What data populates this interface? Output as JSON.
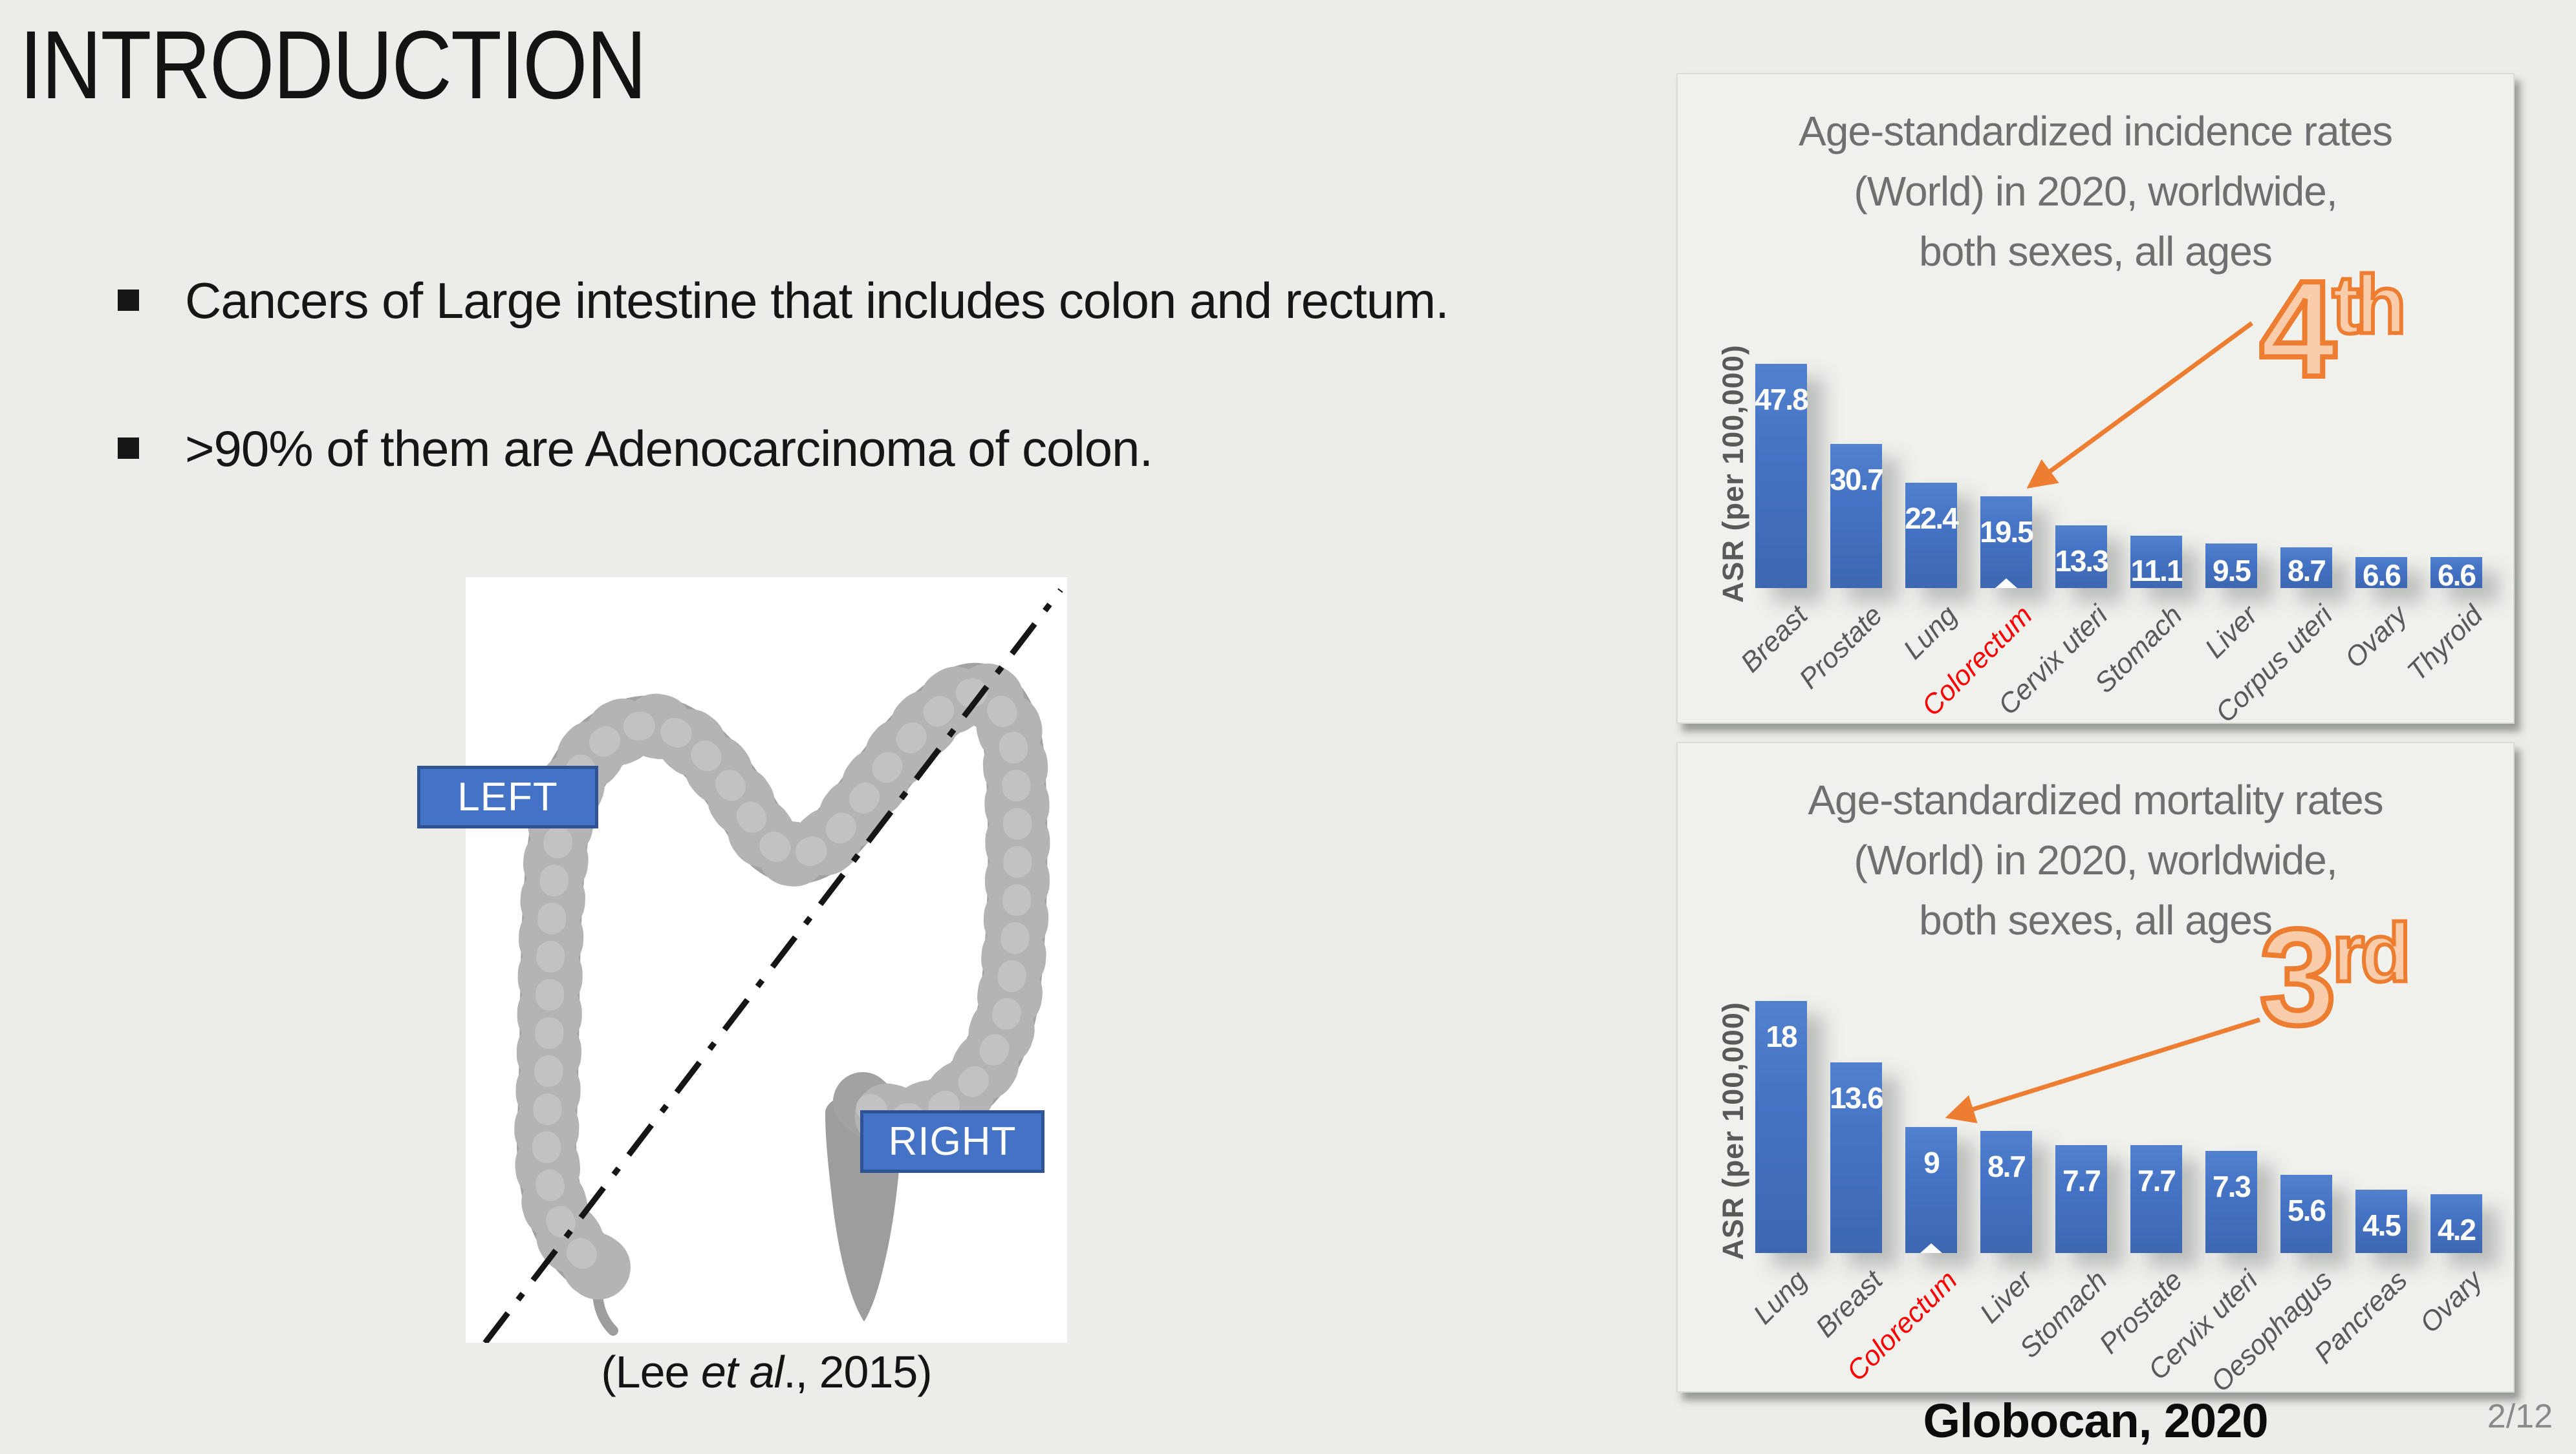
{
  "slide": {
    "title": "INTRODUCTION",
    "bullets": [
      "Cancers of Large intestine that includes colon and rectum.",
      ">90% of them are Adenocarcinoma of colon."
    ],
    "figure": {
      "left_label": "LEFT",
      "right_label": "RIGHT",
      "caption": {
        "prefix": "(Lee ",
        "italic": "et al",
        "suffix": "., 2015)"
      }
    },
    "source_note": "Globocan, 2020",
    "page_number": "2/12"
  },
  "colors": {
    "slide_background": "#ECEDE8",
    "panel_background": "#F0F1ED",
    "bar_blue": "#4472C4",
    "accent_orange": "#ED7D31",
    "orange_fill": "#F9CDAB",
    "highlight_red": "#FF0000",
    "chart_title_gray": "#6F6F6F",
    "axis_gray": "#595959",
    "label_box_blue": "#4472C4",
    "label_box_border": "#2F5496",
    "page_number_gray": "#8A8A8A"
  },
  "chart_data": [
    {
      "type": "bar",
      "title": "Age-standardized incidence rates\n(World) in 2020, worldwide,\nboth sexes, all ages",
      "xlabel": "",
      "ylabel": "ASR (per 100,000)",
      "ylim": [
        0,
        50
      ],
      "grid": false,
      "legend": false,
      "categories": [
        "Breast",
        "Prostate",
        "Lung",
        "Colorectum",
        "Cervix uteri",
        "Stomach",
        "Liver",
        "Corpus uteri",
        "Ovary",
        "Thyroid"
      ],
      "values": [
        47.8,
        30.7,
        22.4,
        19.5,
        13.3,
        11.1,
        9.5,
        8.7,
        6.6,
        6.6
      ],
      "labels": [
        "47.8",
        "30.7",
        "22.4",
        "19.5",
        "13.3",
        "11.1",
        "9.5",
        "8.7",
        "6.6",
        "6.6"
      ],
      "highlight_category": "Colorectum",
      "highlight_color": "#FF0000",
      "rank_base": "4",
      "rank_sup": "th"
    },
    {
      "type": "bar",
      "title": "Age-standardized mortality rates\n(World) in 2020, worldwide,\nboth sexes, all ages",
      "xlabel": "",
      "ylabel": "ASR (per 100,000)",
      "ylim": [
        0,
        20
      ],
      "grid": false,
      "legend": false,
      "categories": [
        "Lung",
        "Breast",
        "Colorectum",
        "Liver",
        "Stomach",
        "Prostate",
        "Cervix uteri",
        "Oesophagus",
        "Pancreas",
        "Ovary"
      ],
      "values": [
        18,
        13.6,
        9,
        8.7,
        7.7,
        7.7,
        7.3,
        5.6,
        4.5,
        4.2
      ],
      "labels": [
        "18",
        "13.6",
        "9",
        "8.7",
        "7.7",
        "7.7",
        "7.3",
        "5.6",
        "4.5",
        "4.2"
      ],
      "highlight_category": "Colorectum",
      "highlight_color": "#FF0000",
      "rank_base": "3",
      "rank_sup": "rd"
    }
  ]
}
